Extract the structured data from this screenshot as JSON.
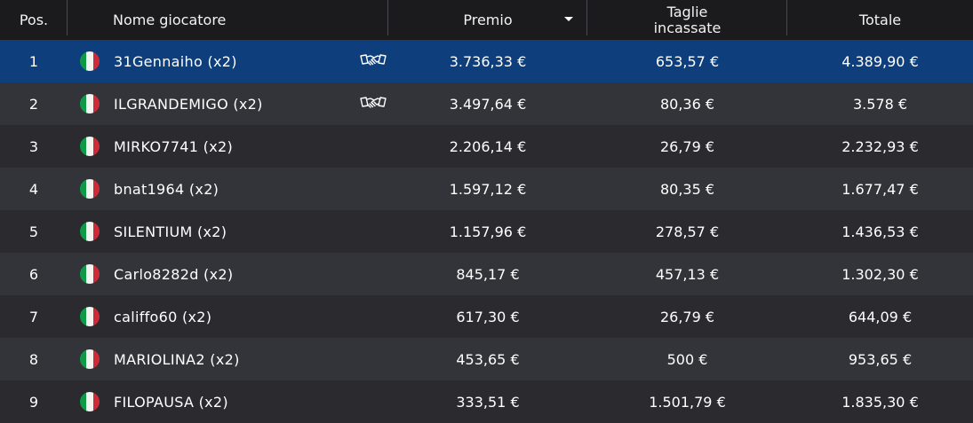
{
  "headers": {
    "pos": "Pos.",
    "name": "Nome giocatore",
    "prize": "Premio",
    "bounty_line1": "Taglie",
    "bounty_line2": "incassate",
    "total": "Totale"
  },
  "flag_icon": "italy-flag-icon",
  "deal_icon": "handshake-icon",
  "colors": {
    "header_bg": "#1b1b1e",
    "selected_row": "#0e3f7c",
    "row_odd": "#33333a",
    "row_even": "#2a2a2f"
  },
  "rows": [
    {
      "pos": "1",
      "name": "31Gennaiho (x2)",
      "deal": true,
      "prize": "3.736,33 €",
      "bounty": "653,57 €",
      "total": "4.389,90 €"
    },
    {
      "pos": "2",
      "name": "ILGRANDEMIGO (x2)",
      "deal": true,
      "prize": "3.497,64 €",
      "bounty": "80,36 €",
      "total": "3.578 €"
    },
    {
      "pos": "3",
      "name": "MIRKO7741 (x2)",
      "deal": false,
      "prize": "2.206,14 €",
      "bounty": "26,79 €",
      "total": "2.232,93 €"
    },
    {
      "pos": "4",
      "name": "bnat1964 (x2)",
      "deal": false,
      "prize": "1.597,12 €",
      "bounty": "80,35 €",
      "total": "1.677,47 €"
    },
    {
      "pos": "5",
      "name": "SILENTIUM (x2)",
      "deal": false,
      "prize": "1.157,96 €",
      "bounty": "278,57 €",
      "total": "1.436,53 €"
    },
    {
      "pos": "6",
      "name": "Carlo8282d (x2)",
      "deal": false,
      "prize": "845,17 €",
      "bounty": "457,13 €",
      "total": "1.302,30 €"
    },
    {
      "pos": "7",
      "name": "califfo60 (x2)",
      "deal": false,
      "prize": "617,30 €",
      "bounty": "26,79 €",
      "total": "644,09 €"
    },
    {
      "pos": "8",
      "name": "MARIOLINA2 (x2)",
      "deal": false,
      "prize": "453,65 €",
      "bounty": "500 €",
      "total": "953,65 €"
    },
    {
      "pos": "9",
      "name": "FILOPAUSA (x2)",
      "deal": false,
      "prize": "333,51 €",
      "bounty": "1.501,79 €",
      "total": "1.835,30 €"
    }
  ]
}
